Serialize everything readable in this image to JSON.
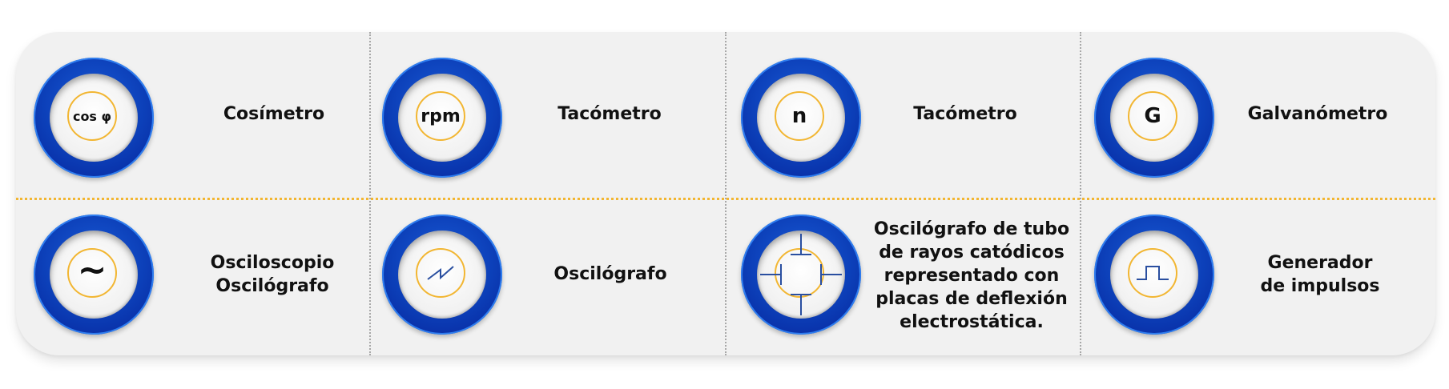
{
  "items": [
    {
      "symbol": "cos φ",
      "label_lines": [
        "Cosímetro"
      ]
    },
    {
      "symbol": "rpm",
      "label_lines": [
        "Tacómetro"
      ]
    },
    {
      "symbol": "n",
      "label_lines": [
        "Tacómetro"
      ]
    },
    {
      "symbol": "G",
      "label_lines": [
        "Galvanómetro"
      ]
    },
    {
      "symbol": "~",
      "label_lines": [
        "Osciloscopio",
        "Oscilógrafo"
      ]
    },
    {
      "symbol": "",
      "icon": "zigzag-icon",
      "label_lines": [
        "Oscilógrafo"
      ]
    },
    {
      "symbol": "",
      "icon": "deflection-plates-icon",
      "label_lines": [
        "Oscilógrafo de tubo",
        "de rayos catódicos",
        "representado con",
        "placas de deflexión",
        "electrostática."
      ]
    },
    {
      "symbol": "",
      "icon": "pulse-icon",
      "label_lines": [
        "Generador",
        "de impulsos"
      ]
    }
  ],
  "colors": {
    "badge_blue": "#0c3fb8",
    "ring_yellow": "#f2b632",
    "icon_blue": "#2a4fa0",
    "divider_gray": "#a8a8a8"
  }
}
